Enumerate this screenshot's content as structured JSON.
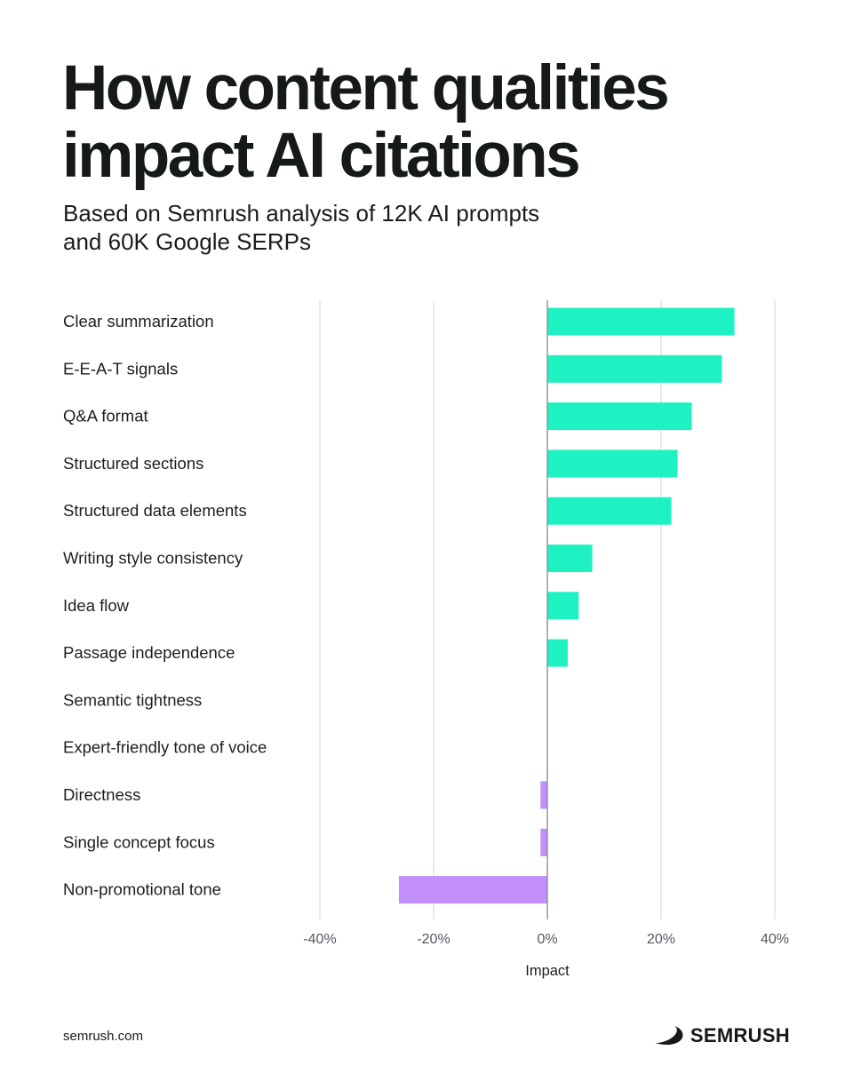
{
  "header": {
    "title_lines": [
      "How content qualities",
      "impact AI citations"
    ],
    "subtitle_lines": [
      "Based on Semrush analysis of 12K AI prompts",
      "and 60K Google SERPs"
    ]
  },
  "chart_data": {
    "type": "bar",
    "orientation": "horizontal",
    "categories": [
      "Clear summarization",
      "E-E-A-T signals",
      "Q&A format",
      "Structured sections",
      "Structured data elements",
      "Writing style consistency",
      "Idea flow",
      "Passage independence",
      "Semantic tightness",
      "Expert-friendly tone of voice",
      "Directness",
      "Single concept focus",
      "Non-promotional tone"
    ],
    "values": [
      32.9,
      30.7,
      25.4,
      22.9,
      21.8,
      7.9,
      5.5,
      3.6,
      0,
      0,
      -1.2,
      -1.2,
      -26.1
    ],
    "xlabel": "Impact",
    "xlim": [
      -40,
      40
    ],
    "xticks": [
      -40,
      -20,
      0,
      20,
      40
    ],
    "xtick_labels": [
      "-40%",
      "-20%",
      "0%",
      "20%",
      "40%"
    ],
    "grid": true,
    "colors": {
      "positive": "#1ef2c2",
      "negative": "#c18efb",
      "grid": "#dcdcdc",
      "zero_line": "#8a8a8a"
    }
  },
  "footer": {
    "url": "semrush.com",
    "brand": "SEMRUSH",
    "brand_icon": "semrush-fire-logo-icon"
  }
}
